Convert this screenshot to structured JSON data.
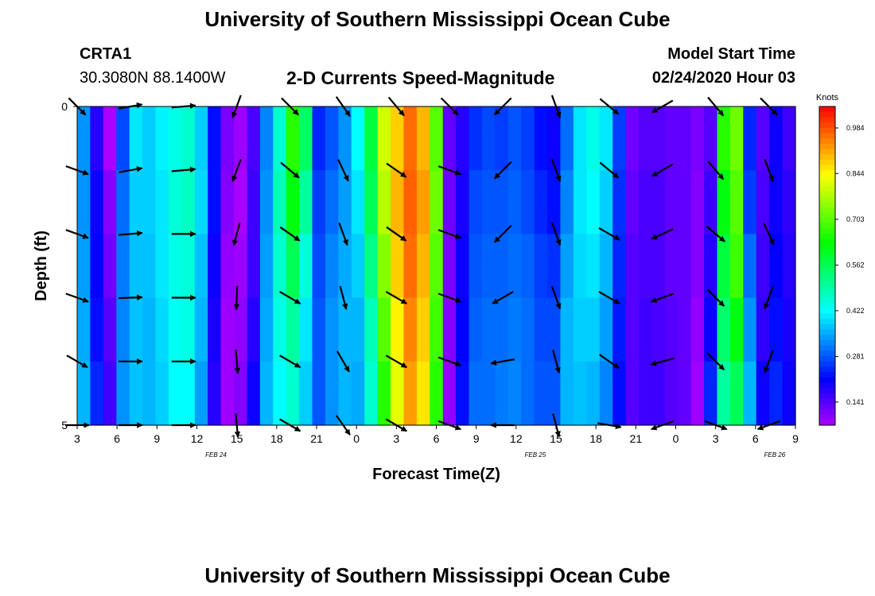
{
  "header": {
    "title": "University of Southern Mississippi Ocean Cube",
    "station": "CRTA1",
    "coords": "30.3080N 88.1400W",
    "subtitle": "2-D Currents Speed-Magnitude",
    "start_label": "Model Start Time",
    "start_time": "02/24/2020 Hour 03"
  },
  "footer": {
    "title": "University of Southern Mississippi Ocean Cube"
  },
  "chart_data": {
    "type": "heatmap",
    "title": "2-D Currents Speed-Magnitude",
    "xlabel": "Forecast Time(Z)",
    "ylabel": "Depth (ft)",
    "x_tick_labels": [
      "3",
      "6",
      "9",
      "12",
      "15",
      "18",
      "21",
      "0",
      "3",
      "6",
      "9",
      "12",
      "15",
      "18",
      "21",
      "0",
      "3",
      "6",
      "9"
    ],
    "date_labels": [
      {
        "text": "FEB  24",
        "tick_index": 3
      },
      {
        "text": "FEB  25",
        "tick_index": 11
      },
      {
        "text": "FEB  26",
        "tick_index": 17
      }
    ],
    "ylim": [
      0,
      5
    ],
    "y_tick_labels": [
      "0",
      "5"
    ],
    "colorbar": {
      "label": "Knots",
      "min": 0.07,
      "max": 1.05,
      "ticks": [
        0.984,
        0.844,
        0.703,
        0.562,
        0.422,
        0.281,
        0.141
      ],
      "tick_labels": [
        "0.984",
        "0.844",
        "0.703",
        "0.562",
        "0.422",
        "0.281",
        "0.141"
      ]
    },
    "speed_by_column": [
      {
        "hour": 3,
        "day": "FEB 24",
        "values": [
          0.33,
          0.33,
          0.34,
          0.35,
          0.36
        ]
      },
      {
        "hour": 4,
        "day": "FEB 24",
        "values": [
          0.18,
          0.2,
          0.21,
          0.22,
          0.24
        ]
      },
      {
        "hour": 5,
        "day": "FEB 24",
        "values": [
          0.07,
          0.1,
          0.12,
          0.14,
          0.16
        ]
      },
      {
        "hour": 6,
        "day": "FEB 24",
        "values": [
          0.27,
          0.3,
          0.31,
          0.32,
          0.33
        ]
      },
      {
        "hour": 7,
        "day": "FEB 24",
        "values": [
          0.4,
          0.38,
          0.37,
          0.37,
          0.37
        ]
      },
      {
        "hour": 8,
        "day": "FEB 24",
        "values": [
          0.38,
          0.38,
          0.37,
          0.36,
          0.36
        ]
      },
      {
        "hour": 9,
        "day": "FEB 24",
        "values": [
          0.41,
          0.4,
          0.4,
          0.39,
          0.38
        ]
      },
      {
        "hour": 10,
        "day": "FEB 24",
        "values": [
          0.44,
          0.45,
          0.44,
          0.43,
          0.42
        ]
      },
      {
        "hour": 11,
        "day": "FEB 24",
        "values": [
          0.46,
          0.47,
          0.45,
          0.44,
          0.42
        ]
      },
      {
        "hour": 12,
        "day": "FEB 24",
        "values": [
          0.38,
          0.39,
          0.37,
          0.36,
          0.34
        ]
      },
      {
        "hour": 13,
        "day": "FEB 24",
        "values": [
          0.22,
          0.22,
          0.2,
          0.19,
          0.18
        ]
      },
      {
        "hour": 14,
        "day": "FEB 24",
        "values": [
          0.11,
          0.1,
          0.09,
          0.08,
          0.08
        ]
      },
      {
        "hour": 15,
        "day": "FEB 24",
        "values": [
          0.08,
          0.07,
          0.08,
          0.09,
          0.1
        ]
      },
      {
        "hour": 16,
        "day": "FEB 24",
        "values": [
          0.15,
          0.16,
          0.16,
          0.18,
          0.2
        ]
      },
      {
        "hour": 17,
        "day": "FEB 24",
        "values": [
          0.32,
          0.33,
          0.34,
          0.35,
          0.36
        ]
      },
      {
        "hour": 18,
        "day": "FEB 24",
        "values": [
          0.46,
          0.48,
          0.46,
          0.44,
          0.42
        ]
      },
      {
        "hour": 19,
        "day": "FEB 24",
        "values": [
          0.66,
          0.62,
          0.56,
          0.5,
          0.46
        ]
      },
      {
        "hour": 20,
        "day": "FEB 24",
        "values": [
          0.55,
          0.5,
          0.45,
          0.4,
          0.38
        ]
      },
      {
        "hour": 21,
        "day": "FEB 24",
        "values": [
          0.24,
          0.26,
          0.27,
          0.28,
          0.28
        ]
      },
      {
        "hour": 22,
        "day": "FEB 24",
        "values": [
          0.28,
          0.3,
          0.32,
          0.33,
          0.33
        ]
      },
      {
        "hour": 23,
        "day": "FEB 24",
        "values": [
          0.33,
          0.34,
          0.35,
          0.36,
          0.36
        ]
      },
      {
        "hour": 0,
        "day": "FEB 25",
        "values": [
          0.42,
          0.4,
          0.38,
          0.36,
          0.35
        ]
      },
      {
        "hour": 1,
        "day": "FEB 25",
        "values": [
          0.58,
          0.56,
          0.52,
          0.48,
          0.46
        ]
      },
      {
        "hour": 2,
        "day": "FEB 25",
        "values": [
          0.8,
          0.78,
          0.74,
          0.7,
          0.66
        ]
      },
      {
        "hour": 3,
        "day": "FEB 25",
        "values": [
          0.88,
          0.9,
          0.88,
          0.85,
          0.82
        ]
      },
      {
        "hour": 4,
        "day": "FEB 25",
        "values": [
          0.96,
          0.97,
          0.96,
          0.94,
          0.92
        ]
      },
      {
        "hour": 5,
        "day": "FEB 25",
        "values": [
          0.9,
          0.92,
          0.9,
          0.88,
          0.86
        ]
      },
      {
        "hour": 6,
        "day": "FEB 25",
        "values": [
          0.7,
          0.72,
          0.7,
          0.68,
          0.66
        ]
      },
      {
        "hour": 7,
        "day": "FEB 25",
        "values": [
          0.13,
          0.12,
          0.11,
          0.1,
          0.09
        ]
      },
      {
        "hour": 8,
        "day": "FEB 25",
        "values": [
          0.18,
          0.19,
          0.2,
          0.21,
          0.22
        ]
      },
      {
        "hour": 9,
        "day": "FEB 25",
        "values": [
          0.25,
          0.27,
          0.28,
          0.29,
          0.3
        ]
      },
      {
        "hour": 10,
        "day": "FEB 25",
        "values": [
          0.27,
          0.28,
          0.29,
          0.3,
          0.3
        ]
      },
      {
        "hour": 11,
        "day": "FEB 25",
        "values": [
          0.26,
          0.28,
          0.29,
          0.3,
          0.31
        ]
      },
      {
        "hour": 12,
        "day": "FEB 25",
        "values": [
          0.28,
          0.29,
          0.3,
          0.31,
          0.32
        ]
      },
      {
        "hour": 13,
        "day": "FEB 25",
        "values": [
          0.26,
          0.27,
          0.29,
          0.3,
          0.3
        ]
      },
      {
        "hour": 14,
        "day": "FEB 25",
        "values": [
          0.22,
          0.24,
          0.26,
          0.27,
          0.28
        ]
      },
      {
        "hour": 15,
        "day": "FEB 25",
        "values": [
          0.2,
          0.22,
          0.25,
          0.27,
          0.28
        ]
      },
      {
        "hour": 16,
        "day": "FEB 25",
        "values": [
          0.3,
          0.32,
          0.34,
          0.36,
          0.36
        ]
      },
      {
        "hour": 17,
        "day": "FEB 25",
        "values": [
          0.4,
          0.4,
          0.39,
          0.38,
          0.37
        ]
      },
      {
        "hour": 18,
        "day": "FEB 25",
        "values": [
          0.44,
          0.42,
          0.4,
          0.38,
          0.36
        ]
      },
      {
        "hour": 19,
        "day": "FEB 25",
        "values": [
          0.4,
          0.38,
          0.36,
          0.34,
          0.32
        ]
      },
      {
        "hour": 20,
        "day": "FEB 25",
        "values": [
          0.26,
          0.25,
          0.24,
          0.23,
          0.22
        ]
      },
      {
        "hour": 21,
        "day": "FEB 25",
        "values": [
          0.12,
          0.13,
          0.14,
          0.14,
          0.14
        ]
      },
      {
        "hour": 22,
        "day": "FEB 25",
        "values": [
          0.14,
          0.15,
          0.15,
          0.16,
          0.16
        ]
      },
      {
        "hour": 23,
        "day": "FEB 25",
        "values": [
          0.14,
          0.15,
          0.15,
          0.15,
          0.16
        ]
      },
      {
        "hour": 0,
        "day": "FEB 26",
        "values": [
          0.13,
          0.13,
          0.13,
          0.14,
          0.14
        ]
      },
      {
        "hour": 1,
        "day": "FEB 26",
        "values": [
          0.13,
          0.13,
          0.13,
          0.13,
          0.13
        ]
      },
      {
        "hour": 2,
        "day": "FEB 26",
        "values": [
          0.11,
          0.1,
          0.1,
          0.09,
          0.08
        ]
      },
      {
        "hour": 3,
        "day": "FEB 26",
        "values": [
          0.14,
          0.16,
          0.18,
          0.2,
          0.24
        ]
      },
      {
        "hour": 4,
        "day": "FEB 26",
        "values": [
          0.66,
          0.62,
          0.58,
          0.54,
          0.5
        ]
      },
      {
        "hour": 5,
        "day": "FEB 26",
        "values": [
          0.72,
          0.7,
          0.68,
          0.62,
          0.56
        ]
      },
      {
        "hour": 6,
        "day": "FEB 26",
        "values": [
          0.24,
          0.26,
          0.3,
          0.33,
          0.36
        ]
      },
      {
        "hour": 7,
        "day": "FEB 26",
        "values": [
          0.14,
          0.15,
          0.16,
          0.17,
          0.2
        ]
      },
      {
        "hour": 8,
        "day": "FEB 26",
        "values": [
          0.2,
          0.2,
          0.21,
          0.22,
          0.24
        ]
      },
      {
        "hour": 9,
        "day": "FEB 26",
        "values": [
          0.16,
          0.17,
          0.18,
          0.19,
          0.2
        ]
      }
    ],
    "vectors": [
      {
        "hour": 3,
        "day": "FEB 24",
        "directions_deg": [
          135,
          110,
          110,
          110,
          120,
          90
        ]
      },
      {
        "hour": 7,
        "day": "FEB 24",
        "directions_deg": [
          80,
          80,
          85,
          88,
          90,
          90
        ]
      },
      {
        "hour": 11,
        "day": "FEB 24",
        "directions_deg": [
          85,
          85,
          90,
          90,
          90,
          90
        ]
      },
      {
        "hour": 15,
        "day": "FEB 24",
        "directions_deg": [
          200,
          200,
          195,
          182,
          175,
          175
        ]
      },
      {
        "hour": 19,
        "day": "FEB 24",
        "directions_deg": [
          135,
          130,
          125,
          120,
          120,
          120
        ]
      },
      {
        "hour": 23,
        "day": "FEB 24",
        "directions_deg": [
          145,
          155,
          160,
          165,
          150,
          145
        ]
      },
      {
        "hour": 3,
        "day": "FEB 25",
        "directions_deg": [
          140,
          125,
          125,
          120,
          120,
          120
        ]
      },
      {
        "hour": 7,
        "day": "FEB 25",
        "directions_deg": [
          135,
          110,
          110,
          110,
          110,
          110
        ]
      },
      {
        "hour": 11,
        "day": "FEB 25",
        "directions_deg": [
          225,
          225,
          225,
          240,
          260,
          270
        ]
      },
      {
        "hour": 15,
        "day": "FEB 25",
        "directions_deg": [
          160,
          160,
          160,
          160,
          165,
          165
        ]
      },
      {
        "hour": 19,
        "day": "FEB 25",
        "directions_deg": [
          130,
          130,
          120,
          120,
          125,
          100
        ]
      },
      {
        "hour": 23,
        "day": "FEB 25",
        "directions_deg": [
          240,
          240,
          245,
          250,
          255,
          250
        ]
      },
      {
        "hour": 3,
        "day": "FEB 26",
        "directions_deg": [
          140,
          140,
          130,
          135,
          135,
          110
        ]
      },
      {
        "hour": 7,
        "day": "FEB 26",
        "directions_deg": [
          135,
          160,
          155,
          200,
          200,
          250
        ]
      }
    ]
  }
}
